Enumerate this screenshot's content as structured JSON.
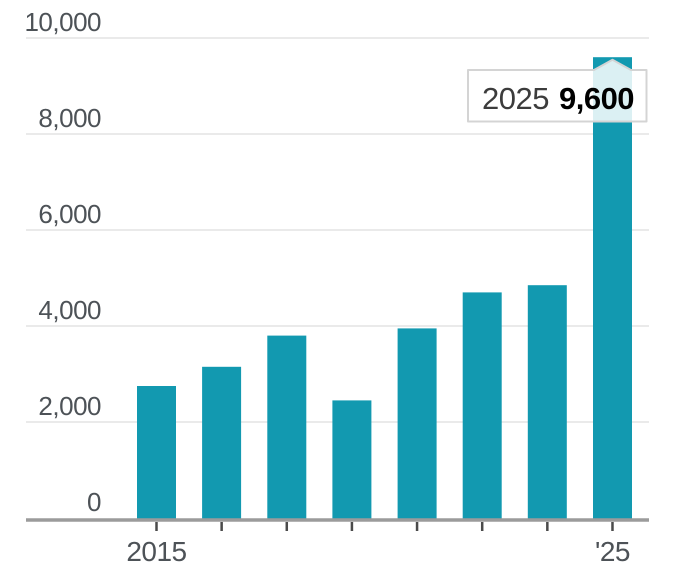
{
  "chart_data": {
    "type": "bar",
    "title": "",
    "xlabel": "",
    "ylabel": "",
    "values": [
      2750,
      3150,
      3800,
      2450,
      3950,
      4700,
      4850,
      9600
    ],
    "x_tick_labels": [
      "2015",
      "",
      "",
      "",
      "",
      "",
      "",
      "'25"
    ],
    "y_ticks": [
      0,
      2000,
      4000,
      6000,
      8000,
      10000
    ],
    "y_tick_labels": [
      "0",
      "2,000",
      "4,000",
      "6,000",
      "8,000",
      "10,000"
    ],
    "ylim": [
      0,
      10000
    ],
    "grid": true,
    "legend": false,
    "highlighted_index": 7,
    "tooltip": {
      "label": "2025",
      "value": "9,600"
    }
  },
  "colors": {
    "bar": "#1299b0",
    "gridline": "#e3e3e3",
    "axis_line": "#9b9b9b",
    "tick_mark": "#4a4a4a",
    "axis_text": "#4d5257",
    "tooltip_bg": "rgba(255,255,255,0.85)",
    "tooltip_border": "#d4d4d4",
    "tooltip_label_text": "#3c3c3c",
    "tooltip_value_text": "#000000"
  }
}
